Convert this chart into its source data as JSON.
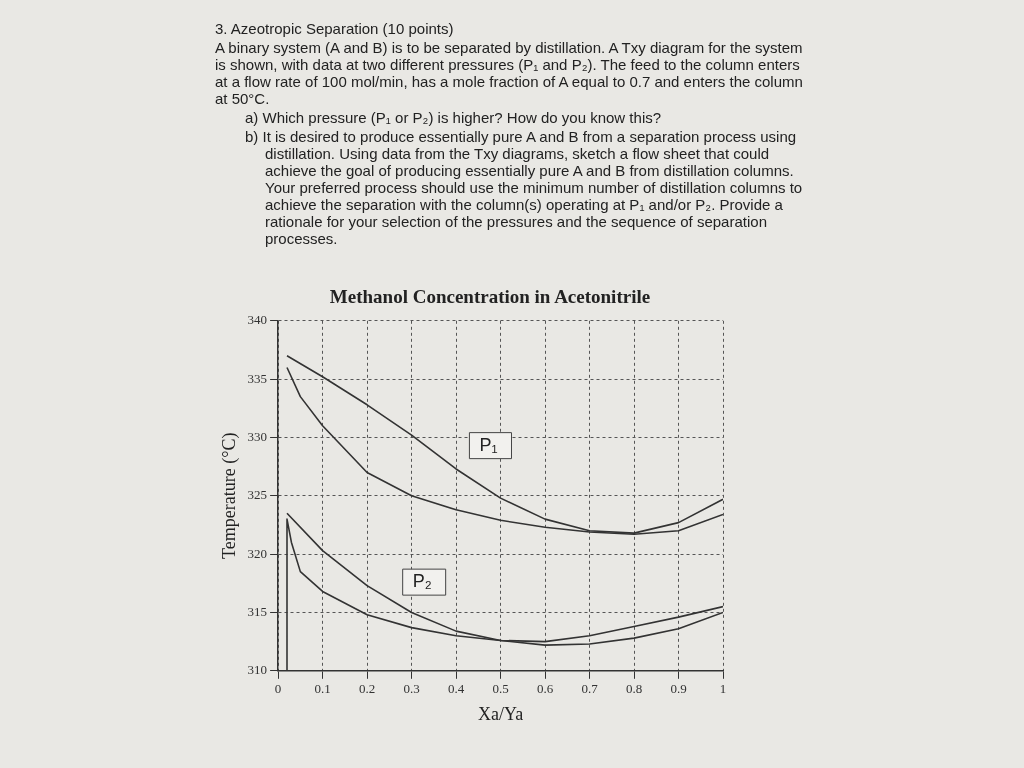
{
  "chart_data": {
    "type": "line",
    "title": "Methanol Concentration in Acetonitrile",
    "xlabel": "Xa/Ya",
    "ylabel": "Temperature (°C)",
    "annotations": [
      "3. Azeotropic Separation (10 points)",
      "A binary system (A and B) is to be separated by distillation. A Txy diagram for the system is shown, with data at two different pressures (P₁ and P₂). The feed to the column enters at a flow rate of 100 mol/min, has a mole fraction of A equal to 0.7 and enters the column at 50°C.",
      "a) Which pressure (P₁ or P₂) is higher? How do you know this?",
      "b) It is desired to produce essentially pure A and B from a separation process using distillation. Using data from the Txy diagrams, sketch a flow sheet that could achieve the goal of producing essentially pure A and B from distillation columns. Your preferred process should use the minimum number of distillation columns to achieve the separation with the column(s) operating at P₁ and/or P₂. Provide a rationale for your selection of the pressures and the sequence of separation processes.",
      "P₁",
      "P₂"
    ],
    "series": [
      {
        "color": "#333333",
        "x": [
          0.02,
          0.1,
          0.2,
          0.3,
          0.4,
          0.5,
          0.6,
          0.7,
          0.8,
          0.9,
          1.0
        ],
        "values": [
          337,
          335.2,
          332.8,
          330.2,
          327.3,
          324.8,
          323,
          322,
          321.8,
          322.7,
          324.7
        ]
      },
      {
        "color": "#333333",
        "x": [
          0.02,
          0.05,
          0.1,
          0.2,
          0.3,
          0.4,
          0.5,
          0.6,
          0.7,
          0.8,
          0.9,
          1.0
        ],
        "values": [
          336,
          333.5,
          331,
          327,
          325,
          323.8,
          322.9,
          322.3,
          321.9,
          321.7,
          322,
          323.4
        ]
      },
      {
        "color": "#333333",
        "x": [
          0.02,
          0.1,
          0.2,
          0.3,
          0.4,
          0.5,
          0.6,
          0.7,
          0.8,
          0.9,
          1.0
        ],
        "values": [
          323.5,
          320.3,
          317.3,
          315,
          313.4,
          312.6,
          312.5,
          313,
          313.8,
          314.6,
          315.5
        ]
      },
      {
        "color": "#333333",
        "x": [
          0.02,
          0.02,
          0.03,
          0.05,
          0.1,
          0.2,
          0.3,
          0.4,
          0.5,
          0.6,
          0.7,
          0.8,
          0.9,
          1.0
        ],
        "values": [
          310,
          323,
          321,
          318.5,
          316.8,
          314.8,
          313.7,
          313,
          312.6,
          312.2,
          312.3,
          312.8,
          313.6,
          315
        ]
      }
    ],
    "xlim": [
      0,
      1
    ],
    "xticks": [
      0,
      0.1,
      0.2,
      0.3,
      0.4,
      0.5,
      0.6,
      0.7,
      0.8,
      0.9,
      1
    ],
    "ylim": [
      310,
      340
    ],
    "yticks": [
      310,
      315,
      320,
      325,
      330,
      335,
      340
    ],
    "grid": true,
    "marker": "none",
    "line_style": "solid",
    "legend": false
  }
}
